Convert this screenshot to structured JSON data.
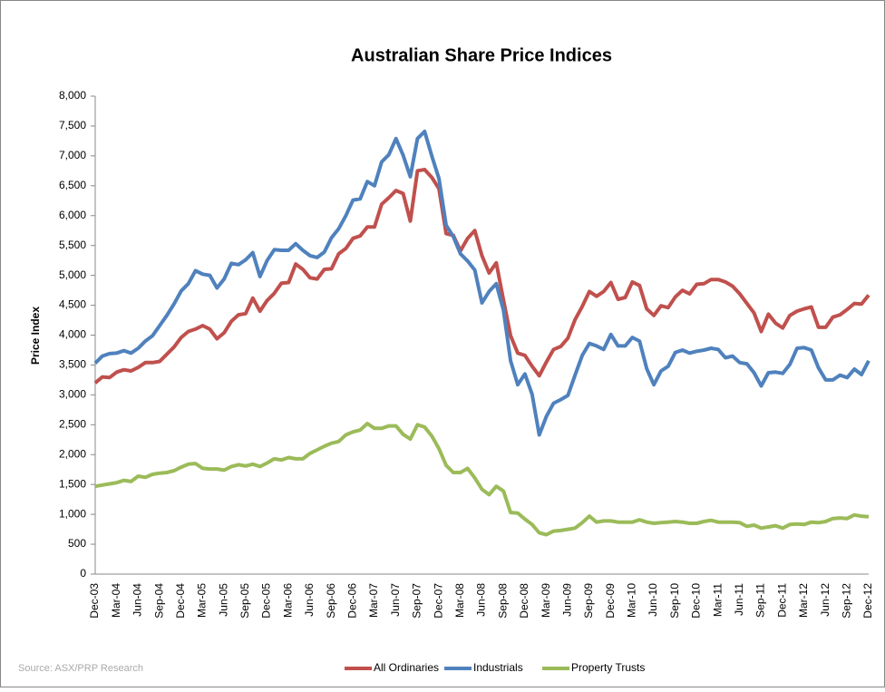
{
  "chart_data": {
    "type": "line",
    "title": "Australian Share Price Indices",
    "y_label": "Price Index",
    "source": "Source: ASX/PRP Research",
    "categories": [
      "Dec-03",
      null,
      null,
      "Mar-04",
      null,
      null,
      "Jun-04",
      null,
      null,
      "Sep-04",
      null,
      null,
      "Dec-04",
      null,
      null,
      "Mar-05",
      null,
      null,
      "Jun-05",
      null,
      null,
      "Sep-05",
      null,
      null,
      "Dec-05",
      null,
      null,
      "Mar-06",
      null,
      null,
      "Jun-06",
      null,
      null,
      "Sep-06",
      null,
      null,
      "Dec-06",
      null,
      null,
      "Mar-07",
      null,
      null,
      "Jun-07",
      null,
      null,
      "Sep-07",
      null,
      null,
      "Dec-07",
      null,
      null,
      "Mar-08",
      null,
      null,
      "Jun-08",
      null,
      null,
      "Sep-08",
      null,
      null,
      "Dec-08",
      null,
      null,
      "Mar-09",
      null,
      null,
      "Jun-09",
      null,
      null,
      "Sep-09",
      null,
      null,
      "Dec-09",
      null,
      null,
      "Mar-10",
      null,
      null,
      "Jun-10",
      null,
      null,
      "Sep-10",
      null,
      null,
      "Dec-10",
      null,
      null,
      "Mar-11",
      null,
      null,
      "Jun-11",
      null,
      null,
      "Sep-11",
      null,
      null,
      "Dec-11",
      null,
      null,
      "Mar-12",
      null,
      null,
      "Jun-12",
      null,
      null,
      "Sep-12",
      null,
      null,
      "Dec-12"
    ],
    "series": [
      {
        "name": "All Ordinaries",
        "color": "#c0504d",
        "values": [
          3200,
          3300,
          3290,
          3380,
          3420,
          3400,
          3460,
          3540,
          3540,
          3560,
          3680,
          3800,
          3960,
          4060,
          4100,
          4160,
          4100,
          3940,
          4040,
          4230,
          4340,
          4360,
          4620,
          4400,
          4580,
          4700,
          4870,
          4880,
          5190,
          5100,
          4960,
          4940,
          5100,
          5110,
          5360,
          5450,
          5620,
          5660,
          5810,
          5810,
          6190,
          6300,
          6420,
          6370,
          5910,
          6750,
          6770,
          6640,
          6450,
          5700,
          5670,
          5410,
          5620,
          5750,
          5330,
          5040,
          5210,
          4590,
          3990,
          3700,
          3660,
          3480,
          3320,
          3550,
          3760,
          3810,
          3950,
          4260,
          4480,
          4730,
          4650,
          4730,
          4880,
          4600,
          4630,
          4890,
          4830,
          4440,
          4330,
          4490,
          4460,
          4640,
          4750,
          4690,
          4850,
          4860,
          4930,
          4930,
          4890,
          4820,
          4690,
          4530,
          4370,
          4060,
          4350,
          4200,
          4120,
          4330,
          4400,
          4440,
          4470,
          4130,
          4130,
          4300,
          4340,
          4430,
          4530,
          4520,
          4670
        ]
      },
      {
        "name": "Industrials",
        "color": "#4f81bd",
        "values": [
          3530,
          3650,
          3690,
          3700,
          3740,
          3700,
          3780,
          3900,
          3990,
          4160,
          4330,
          4520,
          4740,
          4860,
          5080,
          5020,
          5000,
          4790,
          4940,
          5200,
          5180,
          5260,
          5380,
          4980,
          5250,
          5430,
          5420,
          5420,
          5530,
          5420,
          5330,
          5300,
          5390,
          5630,
          5780,
          6000,
          6260,
          6280,
          6570,
          6500,
          6900,
          7020,
          7290,
          7010,
          6650,
          7290,
          7410,
          7000,
          6620,
          5840,
          5650,
          5360,
          5240,
          5090,
          4540,
          4730,
          4860,
          4420,
          3570,
          3170,
          3350,
          3010,
          2330,
          2640,
          2860,
          2920,
          2990,
          3330,
          3660,
          3860,
          3820,
          3760,
          4010,
          3820,
          3820,
          3960,
          3900,
          3440,
          3170,
          3400,
          3480,
          3710,
          3750,
          3700,
          3730,
          3750,
          3780,
          3760,
          3620,
          3650,
          3540,
          3520,
          3370,
          3150,
          3370,
          3380,
          3360,
          3510,
          3780,
          3790,
          3750,
          3450,
          3250,
          3250,
          3330,
          3290,
          3430,
          3340,
          3570
        ]
      },
      {
        "name": "Property Trusts",
        "color": "#9bbb59",
        "values": [
          1470,
          1490,
          1510,
          1530,
          1570,
          1550,
          1640,
          1620,
          1670,
          1690,
          1700,
          1730,
          1790,
          1840,
          1850,
          1770,
          1760,
          1760,
          1740,
          1800,
          1830,
          1810,
          1840,
          1800,
          1860,
          1930,
          1910,
          1950,
          1930,
          1930,
          2020,
          2080,
          2140,
          2190,
          2220,
          2330,
          2380,
          2410,
          2520,
          2440,
          2440,
          2480,
          2480,
          2340,
          2260,
          2500,
          2460,
          2310,
          2100,
          1820,
          1700,
          1700,
          1770,
          1610,
          1420,
          1330,
          1470,
          1390,
          1030,
          1020,
          920,
          830,
          690,
          660,
          720,
          730,
          750,
          770,
          860,
          970,
          870,
          890,
          890,
          870,
          870,
          870,
          910,
          870,
          850,
          860,
          870,
          880,
          870,
          850,
          850,
          880,
          900,
          870,
          870,
          870,
          860,
          800,
          820,
          770,
          790,
          810,
          770,
          830,
          840,
          830,
          870,
          860,
          880,
          930,
          940,
          930,
          990,
          970,
          960
        ]
      }
    ],
    "ylim": [
      0,
      8000
    ],
    "yticks": [
      0,
      500,
      {
        "value": 1000,
        "label": "1,000"
      },
      {
        "value": 1500,
        "label": "1,500"
      },
      {
        "value": 2000,
        "label": "2,000"
      },
      {
        "value": 2500,
        "label": "2,500"
      },
      {
        "value": 3000,
        "label": "3,000"
      },
      {
        "value": 3500,
        "label": "3,500"
      },
      {
        "value": 4000,
        "label": "4,000"
      },
      {
        "value": 4500,
        "label": "4,500"
      },
      {
        "value": 5000,
        "label": "5,000"
      },
      {
        "value": 5500,
        "label": "5,500"
      },
      {
        "value": 6000,
        "label": "6,000"
      },
      {
        "value": 6500,
        "label": "6,500"
      },
      {
        "value": 7000,
        "label": "7,000"
      },
      {
        "value": 7500,
        "label": "7,500"
      },
      {
        "value": 8000,
        "label": "8,000"
      }
    ],
    "grid": false,
    "legend": "bottom"
  }
}
